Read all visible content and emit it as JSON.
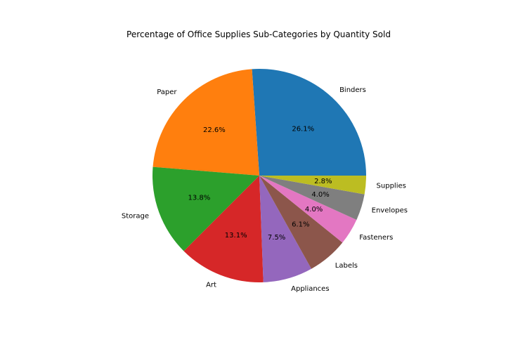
{
  "chart_data": {
    "type": "pie",
    "title": "Percentage of Office Supplies Sub-Categories by Quantity Sold",
    "categories": [
      "Binders",
      "Paper",
      "Storage",
      "Art",
      "Appliances",
      "Labels",
      "Fasteners",
      "Envelopes",
      "Supplies"
    ],
    "values": [
      26.1,
      22.6,
      13.8,
      13.1,
      7.5,
      6.1,
      4.0,
      4.0,
      2.8
    ],
    "value_labels": [
      "26.1%",
      "22.6%",
      "13.8%",
      "13.1%",
      "7.5%",
      "6.1%",
      "4.0%",
      "4.0%",
      "2.8%"
    ],
    "colors": [
      "#1f77b4",
      "#ff7f0e",
      "#2ca02c",
      "#d62728",
      "#9467bd",
      "#8c564b",
      "#e377c2",
      "#7f7f7f",
      "#bcbd22"
    ],
    "start_angle_deg": 0,
    "direction": "counterclockwise",
    "legend": "none"
  }
}
